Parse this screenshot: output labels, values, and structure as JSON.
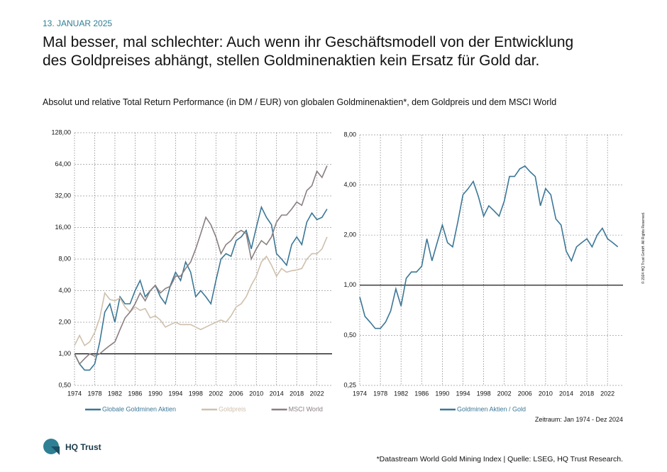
{
  "header": {
    "date": "13. JANUAR 2025",
    "title": [
      "Mal besser, mal schlechter: Auch wenn ihr Geschäftsmodell von der Entwicklung",
      "des Goldpreises abhängt, stellen Goldminenaktien kein Ersatz für Gold dar."
    ],
    "subtitle": "Absolut und relative Total Return Performance (in DM / EUR) von globalen Goldminenaktien*, dem Goldpreis und dem MSCI World"
  },
  "chart_data": [
    {
      "type": "line",
      "log_scale": true,
      "grid": true,
      "reference_line": 1,
      "x": [
        1974,
        1975,
        1976,
        1977,
        1978,
        1979,
        1980,
        1981,
        1982,
        1983,
        1984,
        1985,
        1986,
        1987,
        1988,
        1989,
        1990,
        1991,
        1992,
        1993,
        1994,
        1995,
        1996,
        1997,
        1998,
        1999,
        2000,
        2001,
        2002,
        2003,
        2004,
        2005,
        2006,
        2007,
        2008,
        2009,
        2010,
        2011,
        2012,
        2013,
        2014,
        2015,
        2016,
        2017,
        2018,
        2019,
        2020,
        2021,
        2022,
        2023,
        2024
      ],
      "xlim": [
        1974,
        2025
      ],
      "xticks": [
        1974,
        1978,
        1982,
        1986,
        1990,
        1994,
        1998,
        2002,
        2006,
        2010,
        2014,
        2018,
        2022
      ],
      "ylim": [
        0.5,
        128
      ],
      "yticks": [
        {
          "value": 0.5,
          "label": "0,50"
        },
        {
          "value": 1,
          "label": "1,00"
        },
        {
          "value": 2,
          "label": "2,00"
        },
        {
          "value": 4,
          "label": "4,00"
        },
        {
          "value": 8,
          "label": "8,00"
        },
        {
          "value": 16,
          "label": "16,00"
        },
        {
          "value": 32,
          "label": "32,00"
        },
        {
          "value": 64,
          "label": "64,00"
        },
        {
          "value": 128,
          "label": "128,00"
        }
      ],
      "series": [
        {
          "name": "Globale Goldminen Aktien",
          "color": "#3b7797",
          "values": [
            1.0,
            0.8,
            0.7,
            0.7,
            0.8,
            1.3,
            2.5,
            3.0,
            2.0,
            3.5,
            3.0,
            3.0,
            4.0,
            5.0,
            3.5,
            4.0,
            4.5,
            3.5,
            3.0,
            4.5,
            6.0,
            5.0,
            7.5,
            6.0,
            3.5,
            4.0,
            3.5,
            3.0,
            5.0,
            8.0,
            9.0,
            8.5,
            12,
            13,
            15,
            10,
            16,
            25,
            20,
            17,
            9,
            8,
            7,
            11,
            13,
            11,
            18,
            22,
            19,
            20,
            24
          ]
        },
        {
          "name": "Goldpreis",
          "color": "#cfc0ad",
          "values": [
            1.2,
            1.5,
            1.2,
            1.3,
            1.6,
            2.2,
            3.8,
            3.3,
            3.2,
            3.4,
            2.8,
            2.5,
            2.8,
            2.6,
            2.7,
            2.2,
            2.3,
            2.1,
            1.8,
            1.9,
            2.0,
            1.9,
            1.9,
            1.9,
            1.8,
            1.7,
            1.8,
            1.9,
            2.0,
            2.1,
            2.0,
            2.3,
            2.8,
            3.0,
            3.5,
            4.5,
            5.5,
            7.5,
            8.5,
            7.0,
            5.5,
            6.5,
            6.0,
            6.2,
            6.3,
            6.5,
            8.0,
            9.0,
            9.0,
            10,
            13
          ]
        },
        {
          "name": "MSCI World",
          "color": "#8a7f80",
          "values": [
            1.0,
            0.8,
            0.9,
            1.0,
            0.95,
            1.0,
            1.1,
            1.2,
            1.3,
            1.7,
            2.2,
            2.5,
            3.0,
            3.8,
            3.2,
            4.0,
            4.5,
            3.8,
            4.2,
            4.4,
            5.5,
            5.5,
            6.5,
            7.5,
            10,
            14,
            20,
            17,
            13,
            9,
            11,
            12,
            14,
            15,
            14,
            8,
            10,
            12,
            11,
            13,
            18,
            21,
            21,
            24,
            28,
            26,
            36,
            40,
            55,
            48,
            62
          ]
        }
      ]
    },
    {
      "type": "line",
      "log_scale": true,
      "grid": true,
      "reference_line": 1,
      "x": [
        1974,
        1975,
        1976,
        1977,
        1978,
        1979,
        1980,
        1981,
        1982,
        1983,
        1984,
        1985,
        1986,
        1987,
        1988,
        1989,
        1990,
        1991,
        1992,
        1993,
        1994,
        1995,
        1996,
        1997,
        1998,
        1999,
        2000,
        2001,
        2002,
        2003,
        2004,
        2005,
        2006,
        2007,
        2008,
        2009,
        2010,
        2011,
        2012,
        2013,
        2014,
        2015,
        2016,
        2017,
        2018,
        2019,
        2020,
        2021,
        2022,
        2023,
        2024
      ],
      "xlim": [
        1974,
        2025
      ],
      "xticks": [
        1974,
        1978,
        1982,
        1986,
        1990,
        1994,
        1998,
        2002,
        2006,
        2010,
        2014,
        2018,
        2022
      ],
      "ylim": [
        0.25,
        8
      ],
      "yticks": [
        {
          "value": 0.25,
          "label": "0,25"
        },
        {
          "value": 0.5,
          "label": "0,50"
        },
        {
          "value": 1,
          "label": "1,00"
        },
        {
          "value": 2,
          "label": "2,00"
        },
        {
          "value": 4,
          "label": "4,00"
        },
        {
          "value": 8,
          "label": "8,00"
        }
      ],
      "series": [
        {
          "name": "Goldminen Aktien / Gold",
          "color": "#3b7797",
          "values": [
            0.85,
            0.65,
            0.6,
            0.55,
            0.55,
            0.6,
            0.7,
            0.95,
            0.75,
            1.1,
            1.2,
            1.2,
            1.3,
            1.9,
            1.4,
            1.8,
            2.3,
            1.8,
            1.7,
            2.4,
            3.5,
            3.8,
            4.2,
            3.4,
            2.6,
            3.0,
            2.8,
            2.6,
            3.2,
            4.5,
            4.5,
            5.0,
            5.2,
            4.8,
            4.5,
            3.0,
            3.8,
            3.5,
            2.5,
            2.3,
            1.6,
            1.4,
            1.7,
            1.8,
            1.9,
            1.7,
            2.0,
            2.2,
            1.9,
            1.8,
            1.7
          ]
        }
      ]
    }
  ],
  "footer": {
    "period": "Zeitraum: Jan 1974 - Dez 2024",
    "source": "*Datastream World Gold Mining Index | Quelle: LSEG, HQ Trust Research.",
    "logo": "HQ Trust",
    "copyright": "© 2024 HQ Trust GmbH. All Rights Reserved."
  }
}
